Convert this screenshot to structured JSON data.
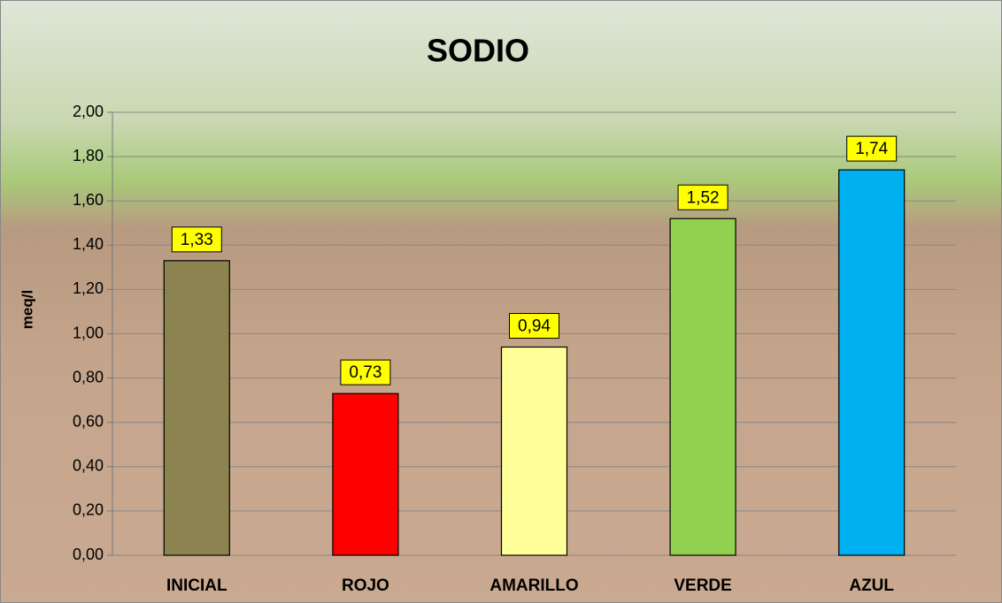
{
  "chart_data": {
    "type": "bar",
    "title": "SODIO",
    "y_label": "meq/l",
    "categories": [
      "INICIAL",
      "ROJO",
      "AMARILLO",
      "VERDE",
      "AZUL"
    ],
    "values": [
      1.33,
      0.73,
      0.94,
      1.52,
      1.74
    ],
    "value_labels": [
      "1,33",
      "0,73",
      "0,94",
      "1,52",
      "1,74"
    ],
    "colors": [
      "#8c8450",
      "#ff0000",
      "#ffff99",
      "#92d050",
      "#00b0f0"
    ],
    "ylim": [
      0,
      2
    ],
    "yticks": [
      {
        "value": 0,
        "label": "0,00"
      },
      {
        "value": 0.2,
        "label": "0,20"
      },
      {
        "value": 0.4,
        "label": "0,40"
      },
      {
        "value": 0.6,
        "label": "0,60"
      },
      {
        "value": 0.8,
        "label": "0,80"
      },
      {
        "value": 1,
        "label": "1,00"
      },
      {
        "value": 1.2,
        "label": "1,20"
      },
      {
        "value": 1.4,
        "label": "1,40"
      },
      {
        "value": 1.6,
        "label": "1,60"
      },
      {
        "value": 1.8,
        "label": "1,80"
      },
      {
        "value": 2,
        "label": "2,00"
      }
    ],
    "grid": true
  }
}
